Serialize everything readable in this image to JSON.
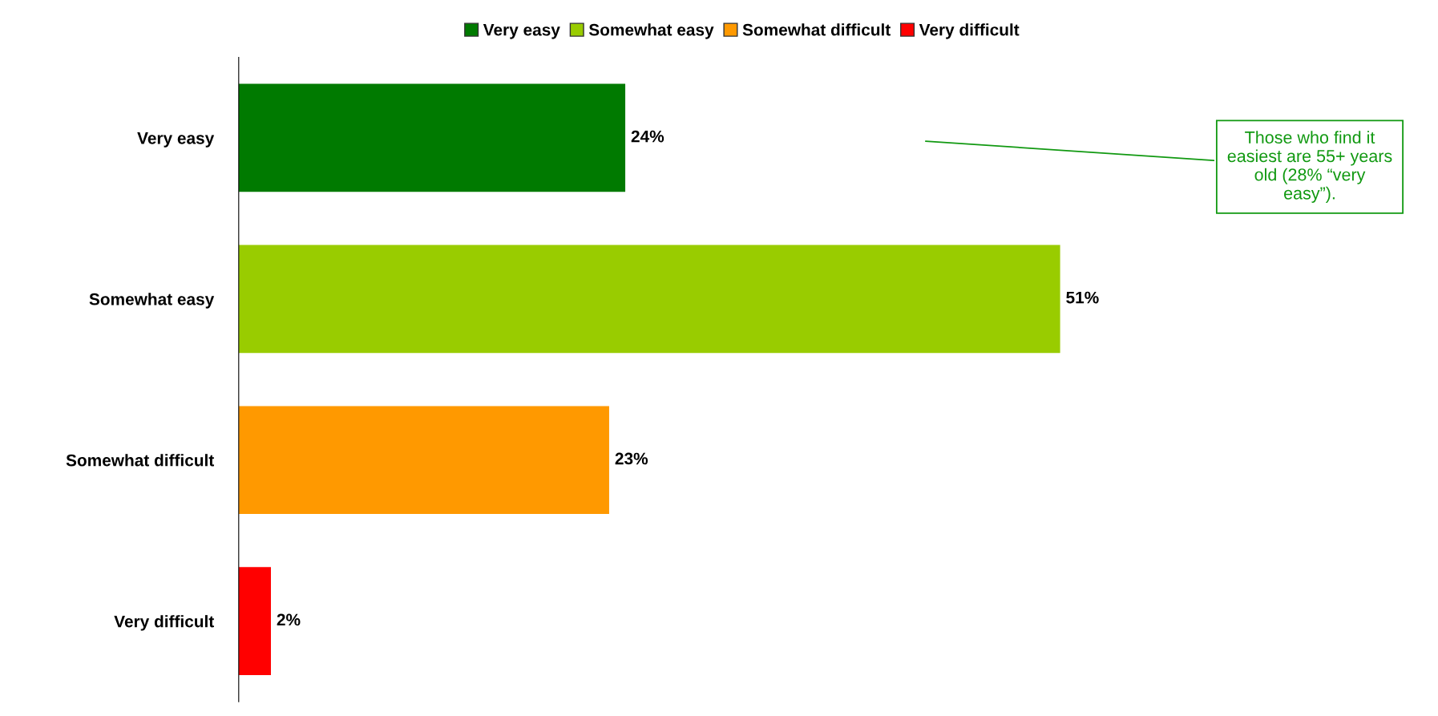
{
  "chart_data": {
    "type": "bar",
    "orientation": "horizontal",
    "categories": [
      "Very easy",
      "Somewhat easy",
      "Somewhat difficult",
      "Very difficult"
    ],
    "series": [
      {
        "name": "Very easy",
        "color": "#007a00",
        "values": [
          24,
          null,
          null,
          null
        ],
        "value_labels": [
          "24%",
          null,
          null,
          null
        ]
      },
      {
        "name": "Somewhat easy",
        "color": "#99cc00",
        "values": [
          null,
          51,
          null,
          null
        ],
        "value_labels": [
          null,
          "51%",
          null,
          null
        ]
      },
      {
        "name": "Somewhat difficult",
        "color": "#ff9900",
        "values": [
          null,
          null,
          23,
          null
        ],
        "value_labels": [
          null,
          null,
          "23%",
          null
        ]
      },
      {
        "name": "Very difficult",
        "color": "#ff0000",
        "values": [
          null,
          null,
          null,
          2
        ],
        "value_labels": [
          null,
          null,
          null,
          "2%"
        ]
      }
    ],
    "legend": "top",
    "grid": false,
    "annotations": [
      "Those who find it easiest are 55+ years old (28% “very easy”)."
    ]
  }
}
